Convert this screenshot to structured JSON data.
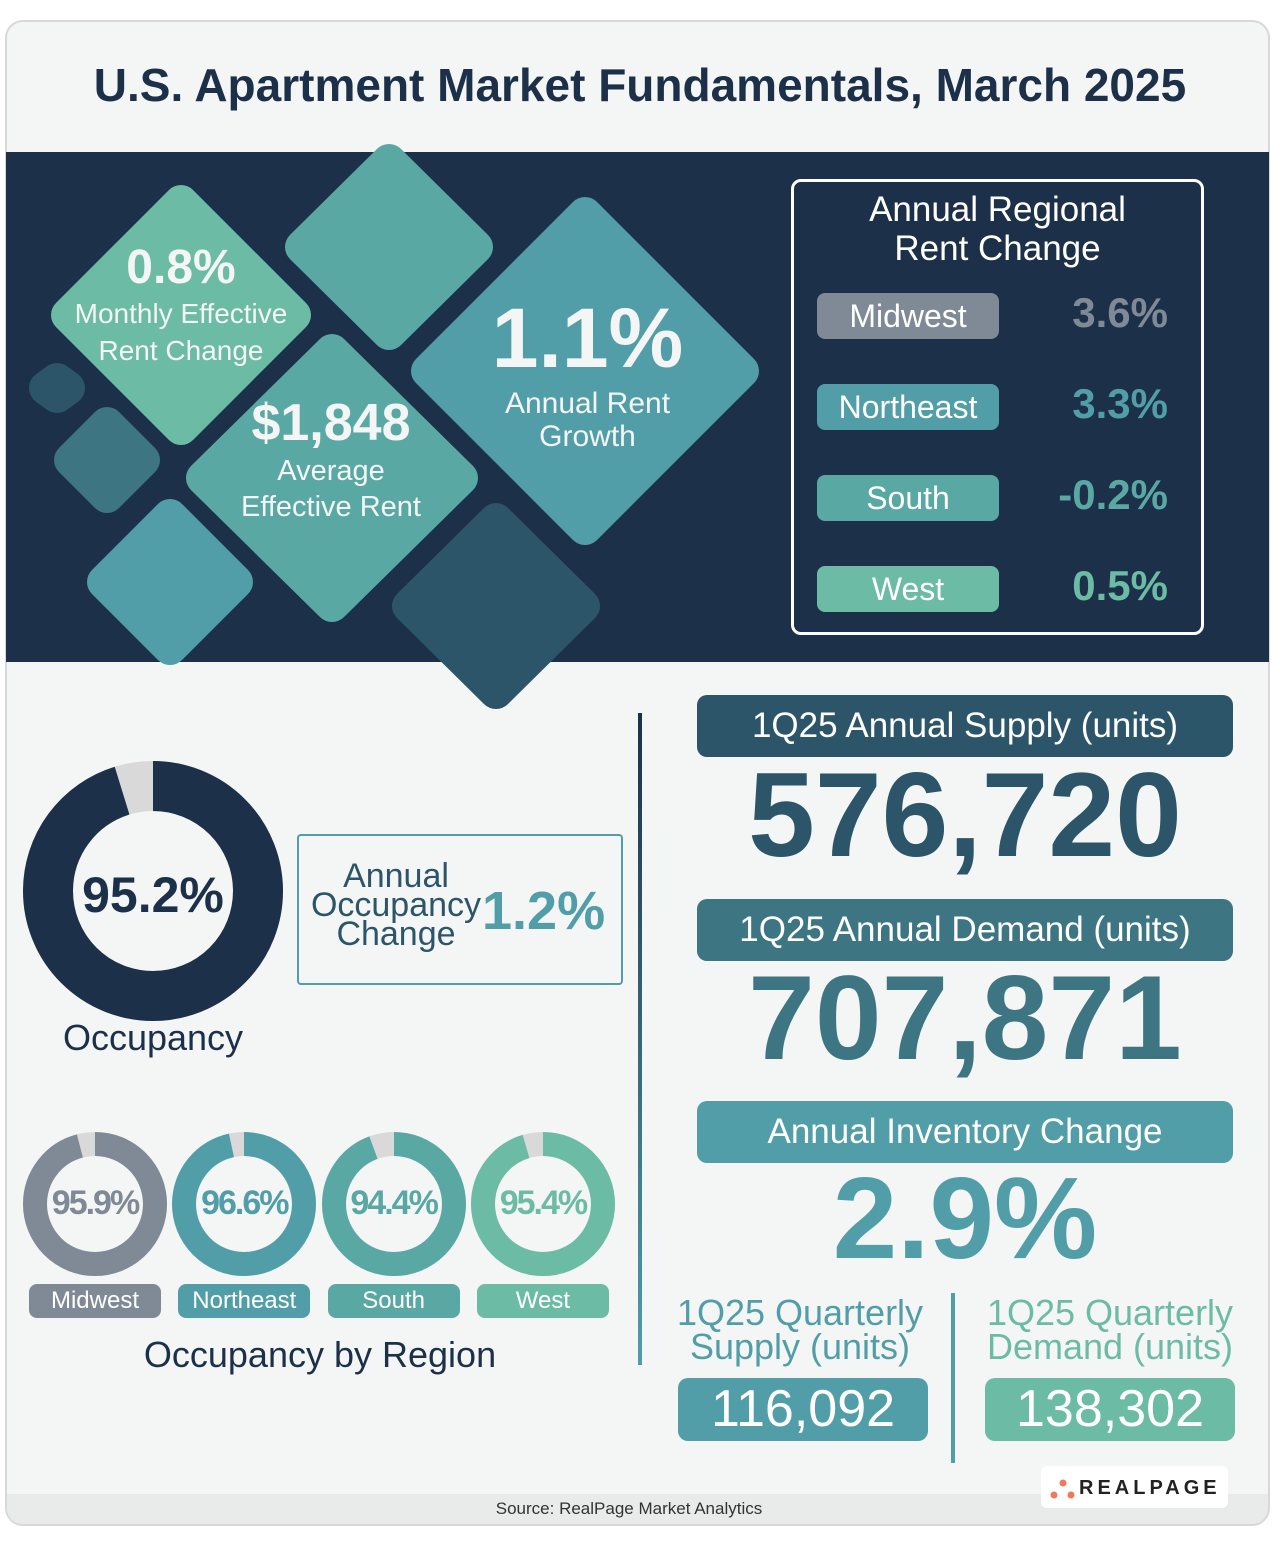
{
  "title": "U.S. Apartment Market Fundamentals, March 2025",
  "colors": {
    "navy": "#1c3049",
    "midwest": "#7f8a96",
    "northeast": "#519ea8",
    "south": "#5aa8a3",
    "west": "#6cbba4",
    "slate": "#2c5569"
  },
  "highlights": {
    "monthly": {
      "value": "0.8%",
      "label1": "Monthly Effective",
      "label2": "Rent Change"
    },
    "average": {
      "value": "$1,848",
      "label1": "Average",
      "label2": "Effective Rent"
    },
    "annual": {
      "value": "1.1%",
      "label1": "Annual Rent",
      "label2": "Growth"
    }
  },
  "regional_rent": {
    "title1": "Annual Regional",
    "title2": "Rent Change",
    "rows": [
      {
        "region": "Midwest",
        "value": "3.6%"
      },
      {
        "region": "Northeast",
        "value": "3.3%"
      },
      {
        "region": "South",
        "value": "-0.2%"
      },
      {
        "region": "West",
        "value": "0.5%"
      }
    ]
  },
  "occupancy": {
    "value": "95.2%",
    "percent": 95.2,
    "label": "Occupancy",
    "change_label1": "Annual",
    "change_label2": "Occupancy",
    "change_label3": "Change",
    "change_value": "1.2%"
  },
  "occupancy_by_region": {
    "title": "Occupancy by Region",
    "items": [
      {
        "region": "Midwest",
        "value": "95.9%",
        "percent": 95.9
      },
      {
        "region": "Northeast",
        "value": "96.6%",
        "percent": 96.6
      },
      {
        "region": "South",
        "value": "94.4%",
        "percent": 94.4
      },
      {
        "region": "West",
        "value": "95.4%",
        "percent": 95.4
      }
    ]
  },
  "supply": {
    "label": "1Q25 Annual Supply (units)",
    "value": "576,720"
  },
  "demand": {
    "label": "1Q25 Annual Demand (units)",
    "value": "707,871"
  },
  "inventory": {
    "label": "Annual Inventory Change",
    "value": "2.9%"
  },
  "quarterly_supply": {
    "label1": "1Q25 Quarterly",
    "label2": "Supply (units)",
    "value": "116,092"
  },
  "quarterly_demand": {
    "label1": "1Q25 Quarterly",
    "label2": "Demand (units)",
    "value": "138,302"
  },
  "source": "Source: RealPage Market Analytics",
  "logo": "REALPAGE"
}
